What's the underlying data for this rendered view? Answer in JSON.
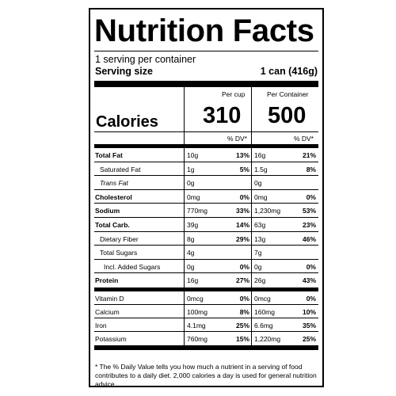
{
  "title": "Nutrition Facts",
  "servings_per_container": "1 serving per container",
  "serving_size_label": "Serving size",
  "serving_size_value": "1 can (416g)",
  "header": {
    "per_cup": "Per cup",
    "per_container": "Per Container"
  },
  "calories": {
    "label": "Calories",
    "per_cup": "310",
    "per_container": "500"
  },
  "dv_header": "% DV*",
  "nutrients": [
    {
      "name": "Total Fat",
      "bold": true,
      "indent": false,
      "italic": false,
      "cup_amount": "10g",
      "cup_dv": "13%",
      "container_amount": "16g",
      "container_dv": "21%"
    },
    {
      "name": "Saturated Fat",
      "bold": false,
      "indent": true,
      "italic": false,
      "cup_amount": "1g",
      "cup_dv": "5%",
      "container_amount": "1.5g",
      "container_dv": "8%"
    },
    {
      "name": "Trans Fat",
      "bold": false,
      "indent": true,
      "italic": true,
      "cup_amount": "0g",
      "cup_dv": "",
      "container_amount": "0g",
      "container_dv": ""
    },
    {
      "name": "Cholesterol",
      "bold": true,
      "indent": false,
      "italic": false,
      "cup_amount": "0mg",
      "cup_dv": "0%",
      "container_amount": "0mg",
      "container_dv": "0%"
    },
    {
      "name": "Sodium",
      "bold": true,
      "indent": false,
      "italic": false,
      "cup_amount": "770mg",
      "cup_dv": "33%",
      "container_amount": "1,230mg",
      "container_dv": "53%"
    },
    {
      "name": "Total Carb.",
      "bold": true,
      "indent": false,
      "italic": false,
      "cup_amount": "39g",
      "cup_dv": "14%",
      "container_amount": "63g",
      "container_dv": "23%"
    },
    {
      "name": "Dietary Fiber",
      "bold": false,
      "indent": true,
      "italic": false,
      "cup_amount": "8g",
      "cup_dv": "29%",
      "container_amount": "13g",
      "container_dv": "46%"
    },
    {
      "name": "Total Sugars",
      "bold": false,
      "indent": true,
      "italic": false,
      "cup_amount": "4g",
      "cup_dv": "",
      "container_amount": "7g",
      "container_dv": ""
    },
    {
      "name": "Incl. Added Sugars",
      "bold": false,
      "indent": true,
      "extra_indent": true,
      "italic": false,
      "cup_amount": "0g",
      "cup_dv": "0%",
      "container_amount": "0g",
      "container_dv": "0%"
    },
    {
      "name": "Protein",
      "bold": true,
      "indent": false,
      "italic": false,
      "cup_amount": "16g",
      "cup_dv": "27%",
      "container_amount": "26g",
      "container_dv": "43%"
    }
  ],
  "vitamins": [
    {
      "name": "Vitamin D",
      "cup_amount": "0mcg",
      "cup_dv": "0%",
      "container_amount": "0mcg",
      "container_dv": "0%"
    },
    {
      "name": "Calcium",
      "cup_amount": "100mg",
      "cup_dv": "8%",
      "container_amount": "160mg",
      "container_dv": "10%"
    },
    {
      "name": "Iron",
      "cup_amount": "4.1mg",
      "cup_dv": "25%",
      "container_amount": "6.6mg",
      "container_dv": "35%"
    },
    {
      "name": "Potassium",
      "cup_amount": "760mg",
      "cup_dv": "15%",
      "container_amount": "1,220mg",
      "container_dv": "25%"
    }
  ],
  "footnote": "* The % Daily Value tells you how much a nutrient in a serving of food contributes to a daily diet. 2,000 calories a day is used for general nutrition advice."
}
